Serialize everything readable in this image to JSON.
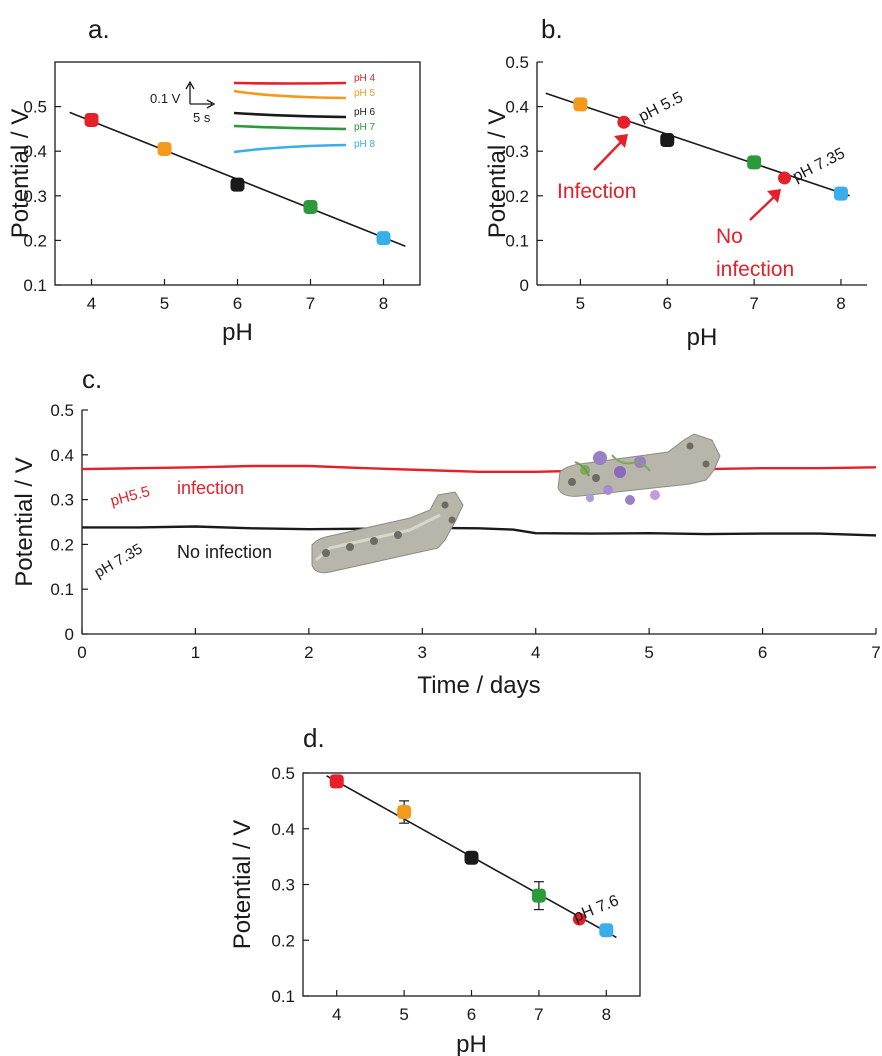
{
  "colors": {
    "ph4": "#e5202a",
    "ph5": "#f39a1c",
    "ph6": "#1a1a1a",
    "ph7": "#2a9a3a",
    "ph8": "#3aaee8",
    "infection": "#e5202a",
    "fit": "#1a1a1a"
  },
  "chart_data": [
    {
      "panel": "a.",
      "type": "scatter",
      "xlabel": "pH",
      "ylabel": "Potential / V",
      "xlim": [
        3.5,
        8.5
      ],
      "ylim": [
        0.1,
        0.6
      ],
      "xticks": [
        4,
        5,
        6,
        7,
        8
      ],
      "yticks": [
        0.1,
        0.2,
        0.3,
        0.4,
        0.5
      ],
      "fit_line": [
        [
          3.7,
          0.487
        ],
        [
          8.3,
          0.187
        ]
      ],
      "points": [
        {
          "x": 4,
          "y": 0.47,
          "err": 0.01,
          "color_key": "ph4"
        },
        {
          "x": 5,
          "y": 0.405,
          "err": 0.01,
          "color_key": "ph5"
        },
        {
          "x": 6,
          "y": 0.325,
          "err": 0.01,
          "color_key": "ph6"
        },
        {
          "x": 7,
          "y": 0.275,
          "err": 0.012,
          "color_key": "ph7"
        },
        {
          "x": 8,
          "y": 0.205,
          "err": 0.01,
          "color_key": "ph8"
        }
      ],
      "inset": {
        "scale_v": "0.1 V",
        "scale_t": "5 s",
        "traces": [
          {
            "label": "pH 4",
            "color_key": "ph4"
          },
          {
            "label": "pH 5",
            "color_key": "ph5"
          },
          {
            "label": "pH 6",
            "color_key": "ph6"
          },
          {
            "label": "pH 7",
            "color_key": "ph7"
          },
          {
            "label": "pH 8",
            "color_key": "ph8"
          }
        ]
      }
    },
    {
      "panel": "b.",
      "type": "scatter",
      "xlabel": "pH",
      "ylabel": "Potential / V",
      "xlim": [
        4.5,
        8.3
      ],
      "ylim": [
        0,
        0.5
      ],
      "xticks": [
        5,
        6,
        7,
        8
      ],
      "yticks": [
        0,
        0.1,
        0.2,
        0.3,
        0.4,
        0.5
      ],
      "fit_line": [
        [
          4.6,
          0.43
        ],
        [
          8.1,
          0.2
        ]
      ],
      "points": [
        {
          "x": 5,
          "y": 0.405,
          "err": 0.012,
          "color_key": "ph5"
        },
        {
          "x": 6,
          "y": 0.325,
          "err": 0.01,
          "color_key": "ph6"
        },
        {
          "x": 7,
          "y": 0.275,
          "err": 0.013,
          "color_key": "ph7"
        },
        {
          "x": 8,
          "y": 0.205,
          "err": 0.01,
          "color_key": "ph8"
        }
      ],
      "markers": [
        {
          "x": 5.5,
          "y": 0.365,
          "label": "pH 5.5"
        },
        {
          "x": 7.35,
          "y": 0.24,
          "label": "pH 7.35"
        }
      ],
      "annotations": [
        "Infection",
        "No",
        "infection"
      ]
    },
    {
      "panel": "c.",
      "type": "line",
      "xlabel": "Time / days",
      "ylabel": "Potential / V",
      "xlim": [
        0,
        7
      ],
      "ylim": [
        0,
        0.5
      ],
      "xticks": [
        0,
        1,
        2,
        3,
        4,
        5,
        6,
        7
      ],
      "yticks": [
        0,
        0.1,
        0.2,
        0.3,
        0.4,
        0.5
      ],
      "series": [
        {
          "color_key": "infection",
          "x": [
            0,
            0.5,
            1,
            1.5,
            2,
            2.5,
            3,
            3.5,
            4,
            4.5,
            5,
            5.5,
            6,
            6.5,
            7
          ],
          "y": [
            0.368,
            0.37,
            0.372,
            0.375,
            0.375,
            0.37,
            0.366,
            0.362,
            0.362,
            0.365,
            0.367,
            0.368,
            0.37,
            0.37,
            0.372
          ]
        },
        {
          "color_key": "ph6",
          "x": [
            0,
            0.5,
            1,
            1.5,
            2,
            2.5,
            3,
            3.5,
            3.8,
            4,
            4.5,
            5,
            5.5,
            6,
            6.5,
            7
          ],
          "y": [
            0.238,
            0.238,
            0.24,
            0.236,
            0.234,
            0.235,
            0.237,
            0.236,
            0.233,
            0.225,
            0.224,
            0.225,
            0.223,
            0.224,
            0.224,
            0.22
          ]
        }
      ],
      "annotations": [
        "pH5.5",
        "infection",
        "pH 7.35",
        "No infection"
      ]
    },
    {
      "panel": "d.",
      "type": "scatter",
      "xlabel": "pH",
      "ylabel": "Potential / V",
      "xlim": [
        3.5,
        8.5
      ],
      "ylim": [
        0.1,
        0.5
      ],
      "xticks": [
        4,
        5,
        6,
        7,
        8
      ],
      "yticks": [
        0.1,
        0.2,
        0.3,
        0.4,
        0.5
      ],
      "fit_line": [
        [
          3.85,
          0.495
        ],
        [
          8.15,
          0.205
        ]
      ],
      "points": [
        {
          "x": 4,
          "y": 0.485,
          "err": 0.01,
          "color_key": "ph4"
        },
        {
          "x": 5,
          "y": 0.43,
          "err": 0.02,
          "color_key": "ph5"
        },
        {
          "x": 6,
          "y": 0.348,
          "err": 0.01,
          "color_key": "ph6"
        },
        {
          "x": 7,
          "y": 0.28,
          "err": 0.025,
          "color_key": "ph7"
        },
        {
          "x": 8,
          "y": 0.218,
          "err": 0.01,
          "color_key": "ph8"
        }
      ],
      "markers": [
        {
          "x": 7.6,
          "y": 0.238,
          "label": "pH 7.6"
        }
      ]
    }
  ]
}
